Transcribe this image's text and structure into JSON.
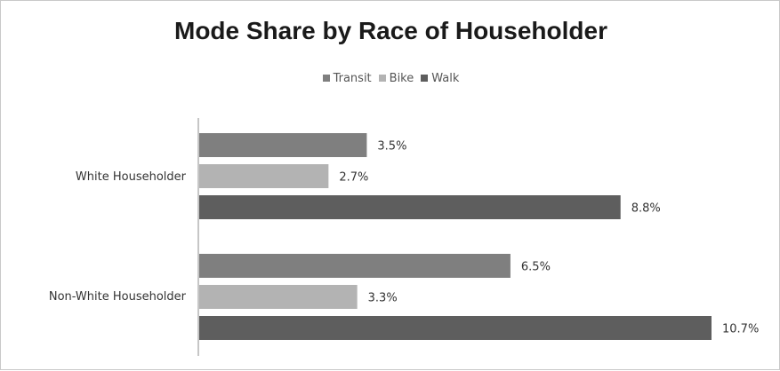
{
  "chart_data": {
    "type": "bar",
    "orientation": "horizontal",
    "title": "Mode Share by Race of Householder",
    "categories": [
      "White Householder",
      "Non-White Householder"
    ],
    "series": [
      {
        "name": "Transit",
        "values": [
          3.5,
          6.5
        ],
        "labels": [
          "3.5%",
          "6.5%"
        ],
        "color": "#7f7f7f"
      },
      {
        "name": "Bike",
        "values": [
          2.7,
          3.3
        ],
        "labels": [
          "2.7%",
          "3.3%"
        ],
        "color": "#b3b3b3"
      },
      {
        "name": "Walk",
        "values": [
          8.8,
          10.7
        ],
        "labels": [
          "8.8%",
          "10.7%"
        ],
        "color": "#5e5e5e"
      }
    ],
    "legend_position": "top",
    "xlim": [
      0,
      10.7
    ],
    "grid": false
  }
}
